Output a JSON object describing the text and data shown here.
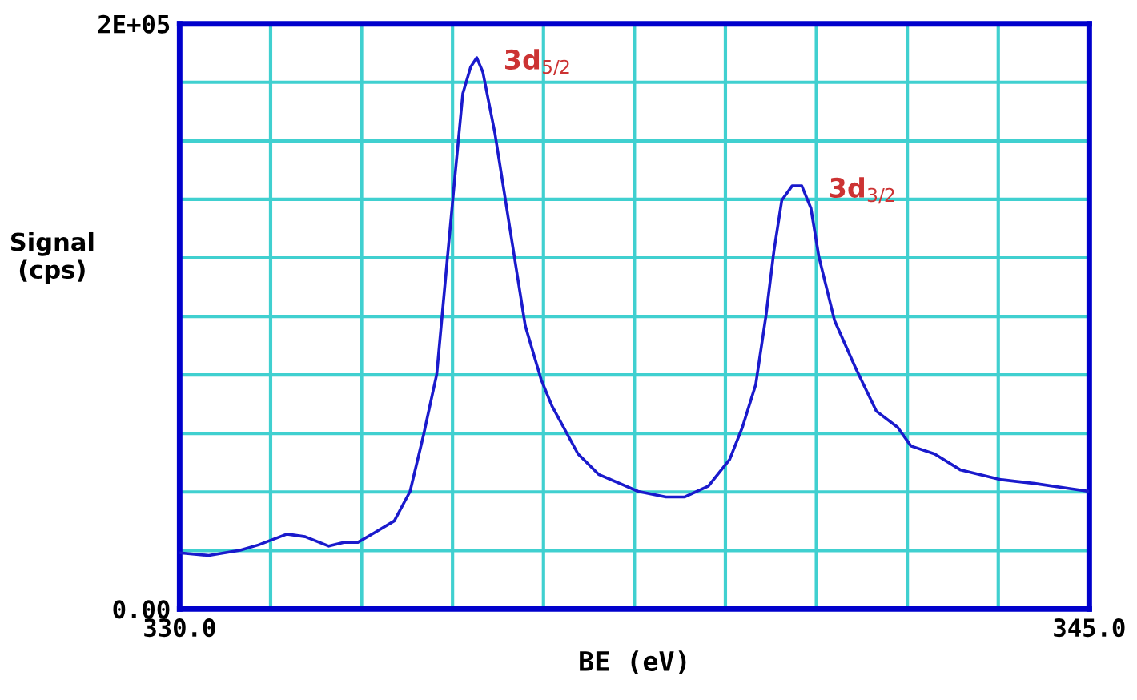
{
  "chart_data": {
    "type": "line",
    "xlabel": "BE (eV)",
    "ylabel": "Signal\n(cps)",
    "x": [
      330.0,
      330.48,
      331.0,
      331.3,
      331.77,
      332.07,
      332.46,
      332.72,
      332.94,
      333.2,
      333.54,
      333.8,
      334.02,
      334.24,
      334.41,
      334.54,
      334.67,
      334.8,
      334.9,
      335.0,
      335.2,
      335.45,
      335.7,
      335.96,
      336.14,
      336.57,
      336.91,
      337.26,
      337.56,
      338.02,
      338.33,
      338.72,
      339.07,
      339.28,
      339.5,
      339.67,
      339.8,
      339.93,
      340.1,
      340.26,
      340.41,
      340.54,
      340.8,
      341.15,
      341.49,
      341.84,
      342.06,
      342.45,
      342.88,
      343.55,
      344.1,
      344.7,
      345.0
    ],
    "series": [
      {
        "color": "#1a1acc",
        "values": [
          19200,
          18300,
          20100,
          21900,
          25600,
          24700,
          21500,
          22800,
          22800,
          25900,
          30100,
          40200,
          59300,
          80300,
          118700,
          147900,
          176200,
          185300,
          188400,
          183500,
          162500,
          129600,
          96800,
          78500,
          69400,
          53000,
          46000,
          42900,
          40200,
          38300,
          38300,
          42000,
          51100,
          62100,
          76700,
          100400,
          122300,
          139700,
          144600,
          144600,
          137000,
          120500,
          98600,
          82200,
          67600,
          62100,
          55700,
          53000,
          47500,
          44200,
          42900,
          41100,
          40200
        ]
      }
    ],
    "xlim": [
      330,
      345
    ],
    "xticks": [
      {
        "value": 330,
        "label": "330.0"
      },
      {
        "value": 331.5,
        "label": null
      },
      {
        "value": 333,
        "label": null
      },
      {
        "value": 334.5,
        "label": null
      },
      {
        "value": 336,
        "label": null
      },
      {
        "value": 337.5,
        "label": null
      },
      {
        "value": 339,
        "label": null
      },
      {
        "value": 340.5,
        "label": null
      },
      {
        "value": 342,
        "label": null
      },
      {
        "value": 343.5,
        "label": null
      },
      {
        "value": 345,
        "label": "345.0"
      }
    ],
    "ylim": [
      0,
      200000
    ],
    "yticks": [
      {
        "value": 0,
        "label": "0.00"
      },
      {
        "value": 20000,
        "label": null
      },
      {
        "value": 40000,
        "label": null
      },
      {
        "value": 60000,
        "label": null
      },
      {
        "value": 80000,
        "label": null
      },
      {
        "value": 100000,
        "label": null
      },
      {
        "value": 120000,
        "label": null
      },
      {
        "value": 140000,
        "label": null
      },
      {
        "value": 160000,
        "label": null
      },
      {
        "value": 180000,
        "label": null
      },
      {
        "value": 200000,
        "label": "2E+05"
      }
    ],
    "grid": true,
    "marker": "none",
    "line_style": "solid",
    "annotations": [
      {
        "text": "3d$_{5/2}$",
        "x": 334.9,
        "y": 188400
      },
      {
        "text": "3d$_{3/2}$",
        "x": 340.26,
        "y": 144600
      }
    ]
  }
}
